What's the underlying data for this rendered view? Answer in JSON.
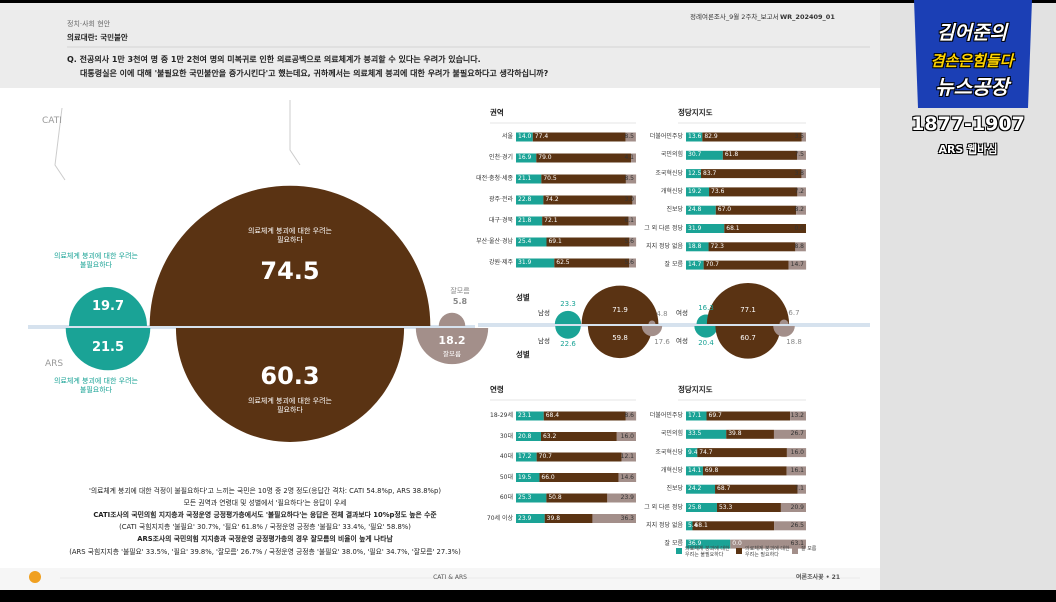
{
  "header": {
    "section": "정치·사회 현안",
    "topic": "의료대란: 국민불안",
    "doc_name": "정례여론조사_9월 2주차_보고서",
    "doc_code": "WR_202409_01"
  },
  "question": {
    "line1": "Q. 전공의사 1만 3천여 명 중 1만 2천여 명의 미복귀로 인한 의료공백으로 의료체계가 붕괴할 수 있다는 우려가 있습니다.",
    "line2": "대통령실은 이에 대해 '불필요한 국민불안을 증가시킨다'고 했는데요, 귀하께서는 의료체계 붕괴에 대한 우려가 불필요하다고 생각하십니까?"
  },
  "logo": {
    "host": "김어준의",
    "show": "겸손은힘들다",
    "title": "뉴스공장",
    "phone": "1877-1907",
    "caption": "ARS 웹바심"
  },
  "legend": {
    "items": [
      {
        "name": "의료체계 붕괴에 대한 우려는 불필요하다",
        "color": "#1aa396"
      },
      {
        "name": "의료체계 붕괴에 대한 우려는 필요하다",
        "color": "#5a3313"
      },
      {
        "name": "잘 모름",
        "color": "#a38f8a"
      }
    ]
  },
  "chart_data": [
    {
      "type": "bubble",
      "categories": [
        "의료체계 붕괴에 대한 우려는 불필요하다",
        "의료체계 붕괴에 대한 우려는 필요하다",
        "잘모름"
      ],
      "series": [
        {
          "name": "CATI",
          "values": [
            19.7,
            74.5,
            5.8
          ]
        },
        {
          "name": "ARS",
          "values": [
            21.5,
            60.3,
            18.2
          ]
        }
      ]
    },
    {
      "type": "bar",
      "title": "권역",
      "xlim": [
        0,
        100
      ],
      "categories": [
        "서울",
        "인천·경기",
        "대전·충청·세종",
        "광주·전라",
        "대구·경북",
        "부산·울산·경남",
        "강원·제주"
      ],
      "series": [
        {
          "values": [
            14.0,
            16.9,
            21.1,
            22.8,
            21.8,
            25.4,
            31.9
          ]
        },
        {
          "values": [
            77.4,
            79.0,
            70.5,
            74.2,
            72.1,
            69.1,
            62.5
          ]
        },
        {
          "values": [
            8.5,
            4.1,
            8.5,
            3.0,
            6.1,
            5.6,
            5.6
          ]
        }
      ],
      "value_labels": [
        [
          "14.0",
          "16.9",
          "21.1",
          "22.8",
          "21.8",
          "25.4",
          "31.9"
        ],
        [
          "77.4",
          "79.0",
          "70.5",
          "74.2",
          "72.1",
          "69.1",
          "62.5"
        ],
        [
          "8.5",
          "4.1",
          "8.5",
          "3.0",
          "6.1",
          "5.6",
          "5.6"
        ]
      ]
    },
    {
      "type": "bar",
      "title": "정당지지도",
      "xlim": [
        0,
        100
      ],
      "categories": [
        "더불어민주당",
        "국민의힘",
        "조국혁신당",
        "개혁신당",
        "진보당",
        "그 외 다른 정당",
        "지지 정당 없음",
        "잘 모름"
      ],
      "series": [
        {
          "values": [
            13.6,
            30.7,
            12.5,
            19.2,
            24.8,
            31.9,
            18.8,
            14.7
          ]
        },
        {
          "values": [
            82.9,
            61.8,
            83.7,
            73.6,
            67.0,
            68.1,
            72.3,
            70.7
          ]
        },
        {
          "values": [
            3.5,
            7.5,
            3.8,
            7.2,
            8.2,
            0,
            8.8,
            14.7
          ]
        }
      ],
      "value_labels": [
        [
          "13.6",
          "30.7",
          "12.5",
          "19.2",
          "24.8",
          "31.9",
          "18.8",
          "14.7"
        ],
        [
          "82.9",
          "61.8",
          "83.7",
          "73.6",
          "67.0",
          "68.1",
          "72.3",
          "70.7"
        ],
        [
          "3.5",
          "7.5",
          "3.8",
          "7.2",
          "8.2",
          "0.0",
          "8.8",
          "14.7"
        ]
      ]
    },
    {
      "type": "bubble",
      "title": "성별",
      "groups": [
        {
          "name": "남성",
          "CATI": [
            23.3,
            71.9,
            4.8
          ],
          "ARS": [
            22.6,
            59.8,
            17.6
          ]
        },
        {
          "name": "여성",
          "CATI": [
            16.3,
            77.1,
            6.7
          ],
          "ARS": [
            20.4,
            60.7,
            18.8
          ]
        }
      ]
    },
    {
      "type": "bar",
      "title": "연령",
      "xlim": [
        0,
        100
      ],
      "categories": [
        "18-29세",
        "30대",
        "40대",
        "50대",
        "60대",
        "70세 이상"
      ],
      "series": [
        {
          "values": [
            23.1,
            20.8,
            17.2,
            19.5,
            25.3,
            23.9
          ]
        },
        {
          "values": [
            68.4,
            63.2,
            70.7,
            66.0,
            50.8,
            39.8
          ]
        },
        {
          "values": [
            8.6,
            16.0,
            12.1,
            14.6,
            23.9,
            36.3
          ]
        }
      ],
      "value_labels": [
        [
          "23.1",
          "20.8",
          "17.2",
          "19.5",
          "25.3",
          "23.9"
        ],
        [
          "68.4",
          "63.2",
          "70.7",
          "66.0",
          "50.8",
          "39.8"
        ],
        [
          "8.6",
          "16.0",
          "12.1",
          "14.6",
          "23.9",
          "36.3"
        ]
      ]
    },
    {
      "type": "bar",
      "title": "정당지지도",
      "xlim": [
        0,
        100
      ],
      "categories": [
        "더불어민주당",
        "국민의힘",
        "조국혁신당",
        "개혁신당",
        "진보당",
        "그 외 다른 정당",
        "지지 정당 없음",
        "잘 모름"
      ],
      "series": [
        {
          "values": [
            17.1,
            33.5,
            9.4,
            14.1,
            24.2,
            25.8,
            5.4,
            36.9
          ]
        },
        {
          "values": [
            69.7,
            39.8,
            74.7,
            69.8,
            68.7,
            53.3,
            68.1,
            0
          ]
        },
        {
          "values": [
            13.2,
            26.7,
            16.0,
            16.1,
            7.1,
            20.9,
            26.5,
            63.1
          ]
        }
      ],
      "value_labels": [
        [
          "17.1",
          "33.5",
          "9.4",
          "14.1",
          "24.2",
          "25.8",
          "5.4",
          "36.9"
        ],
        [
          "69.7",
          "39.8",
          "74.7",
          "69.8",
          "68.7",
          "53.3",
          "68.1",
          "0.0"
        ],
        [
          "13.2",
          "26.7",
          "16.0",
          "16.1",
          "7.1",
          "20.9",
          "26.5",
          "63.1"
        ]
      ]
    }
  ],
  "summary": [
    "'의료체계 붕괴에 대한 걱정이 불필요하다'고 느끼는 국민은 10명 중 2명 정도(응답간 격차: CATI 54.8%p, ARS 38.8%p)",
    "모든 권역과 연령대 및 성별에서 '필요하다'는 응답이 우세",
    "CATI조사의 국민의힘 지지층과 국정운영 긍정평가층에서도 '불필요하다'는 응답은 전체 결과보다 10%p정도 높은 수준",
    "(CATI 국힘지지층 '불필요' 30.7%, '필요' 61.8% / 국정운영 긍정층 '불필요' 33.4%, '필요' 58.8%)",
    "ARS조사의 국민의힘 지지층과 국정운영 긍정평가층의 경우 잘모름의 비율이 높게 나타남",
    "(ARS 국힘지지층 '불필요' 33.5%, '필요' 39.8%, '잘모름' 26.7% / 국정운영 긍정층 '불필요' 38.0%, '필요' 34.7%, '잘모름' 27.3%)"
  ],
  "footer": {
    "center": "CATI & ARS",
    "right": "여론조사꽃 • 21"
  }
}
